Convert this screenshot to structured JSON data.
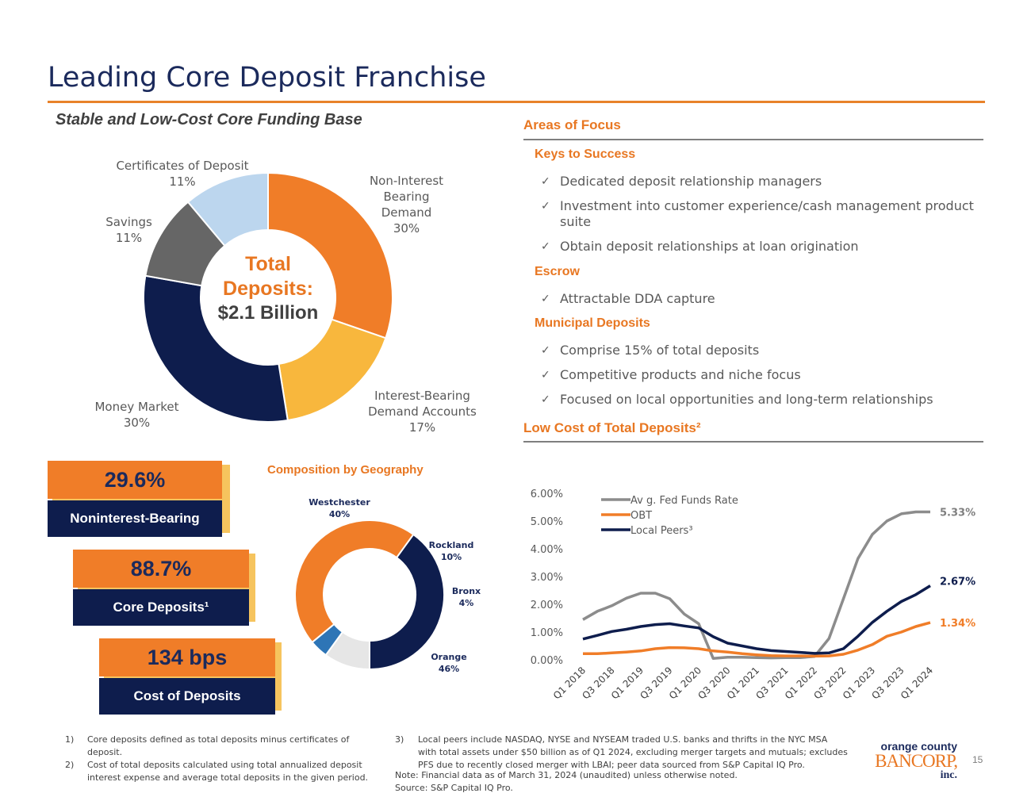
{
  "header": {
    "title": "Leading Core Deposit Franchise",
    "subtitle": "Stable and Low-Cost Core Funding Base"
  },
  "colors": {
    "accent_orange": "#e87722",
    "navy": "#0e1d4d",
    "gray": "#7f7f7f",
    "light_blue": "#bdd7ee",
    "gold": "#f6b93b"
  },
  "focus": {
    "heading": "Areas of Focus",
    "keys_heading": "Keys to Success",
    "keys": [
      "Dedicated deposit relationship managers",
      "Investment into customer experience/cash management product",
      "suite",
      "Obtain deposit relationships at loan origination"
    ],
    "escrow_heading": "Escrow",
    "escrow": [
      "Attractable DDA capture"
    ],
    "municipal_heading": "Municipal Deposits",
    "municipal": [
      "Comprise 15% of total deposits",
      "Competitive products and niche focus",
      "Focused on local opportunities and long-term relationships"
    ],
    "check_glyph": "✓"
  },
  "stats": [
    {
      "value": "29.6%",
      "label": "Noninterest-Bearing"
    },
    {
      "value": "88.7%",
      "label": "Core Deposits¹"
    },
    {
      "value": "134 bps",
      "label": "Cost of Deposits"
    }
  ],
  "chart_data": [
    {
      "type": "pie",
      "title": "Total Deposits:",
      "center_value": "$2.1 Billion",
      "labels": [
        "Non-Interest Bearing Demand",
        "Interest-Bearing Demand Accounts",
        "Money Market",
        "Savings",
        "Certificates of Deposit"
      ],
      "label_lines": [
        [
          "Non-Interest",
          "Bearing",
          "Demand"
        ],
        [
          "Interest-Bearing",
          "Demand Accounts"
        ],
        [
          "Money Market"
        ],
        [
          "Savings"
        ],
        [
          "Certificates of Deposit"
        ]
      ],
      "values": [
        30,
        17,
        30,
        11,
        11
      ],
      "value_labels": [
        "30%",
        "17%",
        "30%",
        "11%",
        "11%"
      ],
      "colors": [
        "#f07d28",
        "#f8b73d",
        "#0e1d4d",
        "#666666",
        "#bcd6ee"
      ]
    },
    {
      "type": "pie",
      "title": "Composition by Geography",
      "labels": [
        "Westchester",
        "Rockland",
        "Bronx",
        "Orange"
      ],
      "values": [
        40,
        10,
        4,
        46
      ],
      "value_labels": [
        "40%",
        "10%",
        "4%",
        "46%"
      ],
      "colors": [
        "#0e1d4d",
        "#e6e6e6",
        "#2e75b6",
        "#f07d28"
      ]
    },
    {
      "type": "line",
      "title": "Low Cost of Total Deposits²",
      "x": [
        "Q1 2018",
        "Q2 2018",
        "Q3 2018",
        "Q4 2018",
        "Q1 2019",
        "Q2 2019",
        "Q3 2019",
        "Q4 2019",
        "Q1 2020",
        "Q2 2020",
        "Q3 2020",
        "Q4 2020",
        "Q1 2021",
        "Q2 2021",
        "Q3 2021",
        "Q4 2021",
        "Q1 2022",
        "Q2 2022",
        "Q3 2022",
        "Q4 2022",
        "Q1 2023",
        "Q2 2023",
        "Q3 2023",
        "Q4 2023",
        "Q1 2024"
      ],
      "tick_labels": [
        "Q1 2018",
        "Q3 2018",
        "Q1 2019",
        "Q3 2019",
        "Q1 2020",
        "Q3 2020",
        "Q1 2021",
        "Q3 2021",
        "Q1 2022",
        "Q3 2022",
        "Q1 2023",
        "Q3 2023",
        "Q1 2024"
      ],
      "y_ticks": [
        "6.00%",
        "5.00%",
        "4.00%",
        "3.00%",
        "2.00%",
        "1.00%",
        "0.00%"
      ],
      "ylim": [
        0,
        6
      ],
      "series": [
        {
          "name": "Av g. Fed Funds Rate",
          "color": "#8c8c8c",
          "end_label": "5.33%",
          "values": [
            1.45,
            1.75,
            1.95,
            2.22,
            2.4,
            2.4,
            2.2,
            1.65,
            1.3,
            0.05,
            0.09,
            0.09,
            0.08,
            0.07,
            0.08,
            0.08,
            0.12,
            0.77,
            2.2,
            3.65,
            4.52,
            5.0,
            5.26,
            5.33,
            5.33
          ]
        },
        {
          "name": "OBT",
          "color": "#f07d28",
          "end_label": "1.34%",
          "values": [
            0.22,
            0.22,
            0.25,
            0.28,
            0.32,
            0.4,
            0.44,
            0.43,
            0.4,
            0.32,
            0.28,
            0.22,
            0.18,
            0.15,
            0.14,
            0.14,
            0.13,
            0.14,
            0.2,
            0.35,
            0.55,
            0.85,
            1.0,
            1.2,
            1.34
          ]
        },
        {
          "name": "Local Peers³",
          "color": "#0e1d4d",
          "end_label": "2.67%",
          "values": [
            0.75,
            0.88,
            1.02,
            1.1,
            1.2,
            1.27,
            1.3,
            1.22,
            1.15,
            0.83,
            0.6,
            0.5,
            0.4,
            0.33,
            0.3,
            0.27,
            0.23,
            0.25,
            0.4,
            0.85,
            1.35,
            1.75,
            2.1,
            2.35,
            2.67
          ]
        }
      ]
    }
  ],
  "footnotes": {
    "n1_num": "1)",
    "n1_text": [
      "Core deposits defined as total deposits minus certificates of",
      "deposit."
    ],
    "n2_num": "2)",
    "n2_text": [
      "Cost of total deposits calculated using total annualized deposit",
      "interest expense and average total deposits in the given period."
    ],
    "n3_num": "3)",
    "n3_text": [
      "Local peers include NASDAQ, NYSE and NYSEAM traded U.S. banks and thrifts in the NYC MSA",
      "with total assets under $50 billion as of Q1 2024, excluding merger targets and mutuals; excludes",
      "PFS due to recently closed merger with LBAI; peer data sourced from S&P Capital IQ Pro."
    ],
    "note": "Note: Financial data as of March 31, 2024 (unaudited) unless otherwise noted.",
    "source": "Source: S&P Capital IQ Pro."
  },
  "logo": {
    "line1": "orange county",
    "line2": "BANCORP,",
    "line3": "inc."
  },
  "page_number": "15"
}
